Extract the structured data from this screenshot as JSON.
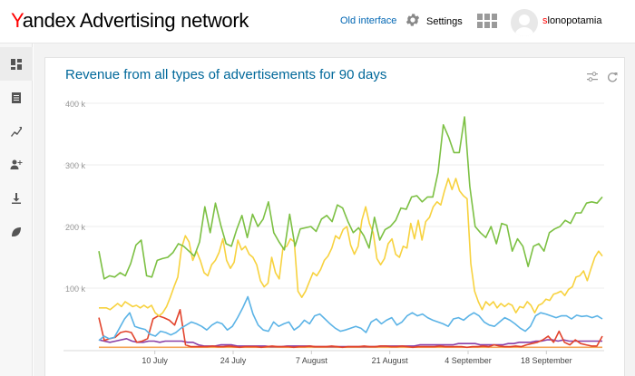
{
  "header": {
    "logo_first": "Y",
    "logo_rest": "andex",
    "logo_suffix": "Advertising network",
    "old_interface": "Old interface",
    "settings": "Settings",
    "user_first": "s",
    "user_rest": "lonopotamia"
  },
  "sidebar": {
    "items": [
      {
        "icon": "dashboard-icon"
      },
      {
        "icon": "report-icon"
      },
      {
        "icon": "statistics-icon"
      },
      {
        "icon": "add-user-icon"
      },
      {
        "icon": "download-icon"
      },
      {
        "icon": "leaf-icon"
      }
    ]
  },
  "card": {
    "title": "Revenue from all types of advertisements for 90 days"
  },
  "chart_data": {
    "type": "line",
    "title": "Revenue from all types of advertisements for 90 days",
    "xlabel": "",
    "ylabel": "",
    "ylim": [
      0,
      400000
    ],
    "yticks": [
      "100 k",
      "200 k",
      "300 k",
      "400 k"
    ],
    "ytick_values": [
      100000,
      200000,
      300000,
      400000
    ],
    "xticks": [
      "10 July",
      "24 July",
      "7 August",
      "21 August",
      "4 September",
      "18 September"
    ],
    "xtick_days": [
      10,
      24,
      38,
      52,
      66,
      80
    ],
    "grid": true,
    "x_days": 90,
    "series": [
      {
        "color": "#7cc043",
        "values": [
          160,
          115,
          120,
          118,
          125,
          120,
          140,
          170,
          178,
          120,
          118,
          145,
          148,
          150,
          158,
          172,
          168,
          160,
          152,
          175,
          232,
          190,
          238,
          202,
          172,
          168,
          195,
          218,
          182,
          220,
          200,
          212,
          240,
          190,
          175,
          162,
          220,
          168,
          196,
          198,
          200,
          192,
          212,
          218,
          208,
          235,
          230,
          208,
          190,
          198,
          185,
          165,
          215,
          178,
          195,
          200,
          210,
          230,
          228,
          248,
          250,
          240,
          248,
          248,
          288,
          365,
          345,
          320,
          320,
          378,
          265,
          200,
          190,
          182,
          200,
          172,
          205,
          202,
          160,
          180,
          168,
          135,
          168,
          172,
          160,
          190,
          196,
          200,
          210,
          205,
          222,
          222,
          238,
          240,
          238,
          248
        ]
      },
      {
        "color": "#f7d23f",
        "values": [
          68,
          68,
          68,
          65,
          70,
          75,
          70,
          78,
          74,
          70,
          72,
          68,
          72,
          68,
          72,
          60,
          55,
          60,
          70,
          85,
          102,
          118,
          165,
          185,
          175,
          145,
          160,
          145,
          125,
          120,
          138,
          145,
          158,
          180,
          145,
          132,
          142,
          178,
          162,
          168,
          155,
          150,
          138,
          112,
          102,
          108,
          150,
          125,
          115,
          165,
          168,
          180,
          175,
          95,
          85,
          95,
          110,
          125,
          120,
          130,
          145,
          152,
          165,
          185,
          180,
          195,
          200,
          170,
          155,
          168,
          210,
          232,
          205,
          190,
          148,
          138,
          148,
          172,
          180,
          155,
          150,
          168,
          165,
          205,
          180,
          210,
          178,
          208,
          215,
          232,
          240,
          235,
          258,
          278,
          260,
          278,
          258,
          250,
          245,
          140,
          95,
          78,
          65,
          78,
          72,
          78,
          68,
          75,
          70,
          75,
          72,
          60,
          70,
          68,
          78,
          72,
          60,
          72,
          75,
          82,
          80,
          90,
          92,
          95,
          88,
          98,
          102,
          118,
          120,
          128,
          112,
          132,
          150,
          160,
          152
        ]
      },
      {
        "color": "#5bb3e6",
        "values": [
          15,
          22,
          18,
          20,
          35,
          50,
          60,
          38,
          35,
          33,
          25,
          22,
          30,
          28,
          24,
          28,
          35,
          40,
          45,
          42,
          38,
          32,
          40,
          45,
          42,
          32,
          38,
          52,
          68,
          86,
          58,
          40,
          32,
          30,
          45,
          38,
          42,
          45,
          32,
          38,
          48,
          42,
          55,
          58,
          50,
          42,
          35,
          30,
          32,
          35,
          38,
          35,
          28,
          45,
          50,
          42,
          48,
          52,
          40,
          45,
          55,
          60,
          55,
          58,
          52,
          48,
          45,
          42,
          38,
          50,
          52,
          48,
          55,
          60,
          55,
          45,
          40,
          38,
          45,
          52,
          48,
          42,
          35,
          30,
          38,
          55,
          60,
          58,
          55,
          52,
          55,
          55,
          50,
          56,
          54,
          55,
          52,
          55,
          50
        ]
      },
      {
        "color": "#e2442d",
        "values": [
          52,
          15,
          18,
          20,
          28,
          30,
          28,
          12,
          14,
          18,
          50,
          55,
          52,
          48,
          40,
          65,
          8,
          5,
          5,
          5,
          5,
          6,
          5,
          5,
          6,
          5,
          4,
          5,
          5,
          5,
          4,
          5,
          6,
          5,
          5,
          5,
          4,
          5,
          5,
          6,
          5,
          5,
          5,
          6,
          5,
          4,
          5,
          5,
          5,
          6,
          5,
          5,
          6,
          6,
          5,
          5,
          6,
          5,
          4,
          5,
          5,
          5,
          5,
          6,
          5,
          5,
          5,
          5,
          4,
          5,
          5,
          6,
          5,
          8,
          6,
          5,
          5,
          6,
          5,
          8,
          10,
          12,
          16,
          22,
          12,
          30,
          12,
          8,
          16,
          10,
          8,
          6,
          6,
          22
        ]
      },
      {
        "color": "#8a3fa6",
        "values": [
          16,
          14,
          12,
          14,
          16,
          18,
          14,
          12,
          12,
          14,
          14,
          12,
          14,
          14,
          14,
          14,
          12,
          12,
          8,
          6,
          6,
          6,
          8,
          8,
          8,
          6,
          6,
          6,
          6,
          6,
          6,
          5,
          5,
          5,
          6,
          6,
          6,
          6,
          6,
          5,
          5,
          5,
          5,
          5,
          5,
          5,
          5,
          5,
          5,
          5,
          5,
          6,
          6,
          6,
          6,
          6,
          6,
          6,
          8,
          8,
          8,
          8,
          8,
          8,
          8,
          10,
          10,
          10,
          10,
          8,
          8,
          8,
          8,
          8,
          10,
          10,
          12,
          12,
          12,
          14,
          14,
          16,
          16,
          14,
          16,
          14,
          14,
          14,
          14,
          14,
          14,
          14
        ]
      },
      {
        "color": "#f4a253",
        "values": [
          4,
          4,
          4,
          4,
          4,
          4,
          4,
          4,
          4,
          4,
          4,
          4,
          4,
          4,
          4,
          4,
          4,
          4,
          4,
          4,
          4,
          4,
          4,
          4,
          4,
          4,
          4,
          4,
          4,
          4,
          4,
          4,
          4,
          4,
          4,
          4,
          4,
          4,
          4,
          4,
          4,
          4,
          4,
          4,
          4,
          4,
          4,
          4,
          4,
          4,
          4,
          4,
          4,
          4,
          4,
          4,
          4,
          4,
          4,
          4,
          4,
          4,
          4,
          4,
          4,
          4,
          4,
          4,
          4,
          4,
          4,
          4,
          4,
          4,
          4,
          4,
          4,
          4,
          4,
          4,
          4,
          4,
          4,
          4,
          4,
          4,
          4,
          4,
          4,
          4
        ]
      }
    ]
  }
}
